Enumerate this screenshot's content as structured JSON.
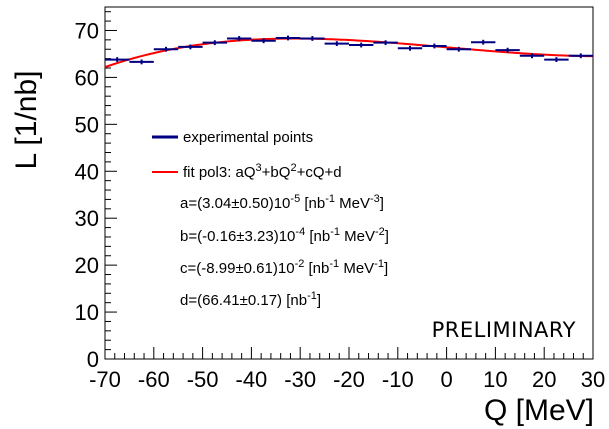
{
  "chart_data": {
    "type": "scatter",
    "xlabel": "Q [MeV]",
    "ylabel": "L [1/nb]",
    "xlim": [
      -70,
      30
    ],
    "ylim": [
      0,
      75
    ],
    "x_ticks": [
      -70,
      -60,
      -50,
      -40,
      -30,
      -20,
      -10,
      0,
      10,
      20,
      30
    ],
    "y_ticks": [
      0,
      10,
      20,
      30,
      40,
      50,
      60,
      70
    ],
    "grid": false,
    "series": [
      {
        "name": "experimental points",
        "color": "#000080",
        "bin_width": 5,
        "x": [
          -67.5,
          -62.5,
          -57.5,
          -52.5,
          -47.5,
          -42.5,
          -37.5,
          -32.5,
          -27.5,
          -22.5,
          -17.5,
          -12.5,
          -7.5,
          -2.5,
          2.5,
          7.5,
          12.5,
          17.5,
          22.5,
          27.5
        ],
        "y": [
          63.8,
          63.3,
          66.0,
          66.5,
          67.4,
          68.3,
          67.8,
          68.4,
          68.3,
          67.2,
          66.9,
          67.4,
          66.2,
          66.7,
          66.0,
          67.5,
          65.8,
          64.6,
          63.8,
          64.6
        ],
        "yerr": [
          0.3,
          0.3,
          0.3,
          0.3,
          0.3,
          0.3,
          0.3,
          0.3,
          0.3,
          0.3,
          0.3,
          0.3,
          0.3,
          0.3,
          0.3,
          0.3,
          0.3,
          0.3,
          0.3,
          0.3
        ]
      },
      {
        "name": "fit pol3",
        "type": "line",
        "color": "#ff0000",
        "model": "pol3",
        "coefficients": {
          "a": 3.04e-05,
          "b": -1.6e-05,
          "c": -0.0899,
          "d": 66.41
        }
      }
    ],
    "legend": [
      {
        "label": "experimental points",
        "color": "#000080"
      },
      {
        "label": "fit pol3: aQ³+bQ²+cQ+d",
        "color": "#ff0000"
      }
    ],
    "legend_position": "left-center",
    "parameters": [
      {
        "pre": "a=(3.04±0.50)10",
        "sup": "-5",
        "unit": " [nb",
        "usup1": "-1",
        "mid": " MeV",
        "usup2": "-3",
        "end": "]"
      },
      {
        "pre": "b=(-0.16±3.23)10",
        "sup": "-4",
        "unit": " [nb",
        "usup1": "-1",
        "mid": " MeV",
        "usup2": "-2",
        "end": "]"
      },
      {
        "pre": "c=(-8.99±0.61)10",
        "sup": "-2",
        "unit": " [nb",
        "usup1": "-1",
        "mid": " MeV",
        "usup2": "-1",
        "end": "]"
      },
      {
        "pre": "d=(66.41±0.17) [nb",
        "sup": "-1",
        "unit": "]",
        "usup1": "",
        "mid": "",
        "usup2": "",
        "end": ""
      }
    ],
    "annotation": "PRELIMINARY"
  }
}
